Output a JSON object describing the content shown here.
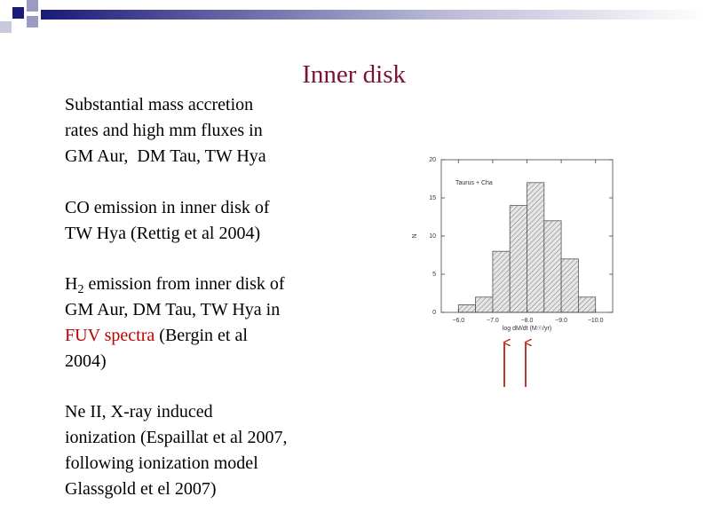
{
  "slide": {
    "title": "Inner disk",
    "items": [
      [
        "Substantial mass accretion",
        "rates and high mm fluxes in",
        "GM Aur,  DM Tau, TW Hya"
      ],
      [
        "CO emission in inner disk of",
        "TW Hya (Rettig et al 2004)"
      ],
      [
        "Ne II, X-ray induced",
        "ionization (Espaillat et al 2007,",
        "following ionization model",
        "Glassgold et el 2007)"
      ]
    ],
    "h2_item": {
      "formula": "H",
      "subscript": "2",
      "rest": " emission from inner disk of",
      "line2": "GM Aur, DM Tau, TW Hya in",
      "highlight": "FUV spectra",
      "line3_rest": " (Bergin et al",
      "line4": "2004)"
    }
  },
  "chart_data": {
    "type": "histogram",
    "xlabel": "log dM/dt (M☉/yr)",
    "ylabel": "N",
    "bins": [
      -6.0,
      -6.5,
      -7.0,
      -7.5,
      -8.0,
      -8.5,
      -9.0,
      -9.5,
      -10.0
    ],
    "series": [
      {
        "name": "Taurus + Cha",
        "color": "#555555",
        "values": [
          1,
          2,
          8,
          14,
          17,
          12,
          7,
          2
        ]
      }
    ],
    "xlim": [
      -5.5,
      -10.5
    ],
    "ylim": [
      0,
      20
    ],
    "xticks": [
      {
        "value": -6,
        "label": "−6.0"
      },
      {
        "value": -7,
        "label": "−7.0"
      },
      {
        "value": -8,
        "label": "−8.0"
      },
      {
        "value": -9,
        "label": "−9.0"
      },
      {
        "value": -10,
        "label": "−10.0"
      }
    ],
    "yticks": [
      0,
      5,
      10,
      15,
      20
    ]
  }
}
